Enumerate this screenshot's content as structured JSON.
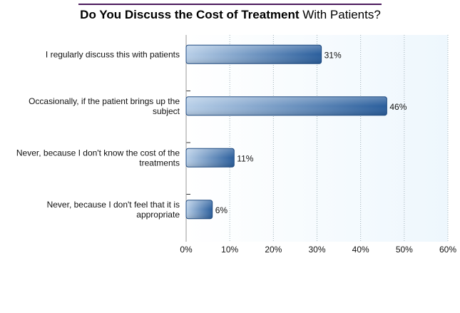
{
  "chart_data": {
    "type": "bar",
    "orientation": "horizontal",
    "title": {
      "bold_part": "Do You Discuss the Cost of Treatment",
      "regular_part": " With Patients?"
    },
    "categories": [
      [
        "I regularly discuss this with patients"
      ],
      [
        "Occasionally, if the patient brings up the",
        "subject"
      ],
      [
        "Never, because I don't know the cost of the",
        "treatments"
      ],
      [
        "Never, because I don't feel that it is",
        "appropriate"
      ]
    ],
    "values": [
      31,
      46,
      11,
      6
    ],
    "data_labels": [
      "31%",
      "46%",
      "11%",
      "6%"
    ],
    "x_ticks": [
      "0%",
      "10%",
      "20%",
      "30%",
      "40%",
      "50%",
      "60%"
    ],
    "xlim": [
      0,
      60
    ],
    "grid": true,
    "colors": {
      "bar_dark": "#2a5e9c",
      "bar_light": "#b8cfe8",
      "bar_edge": "#1f4a80",
      "plot_bg": "#eef7fd",
      "grid": "#9fb0b8",
      "title_rule": "#4b1a5c"
    }
  }
}
